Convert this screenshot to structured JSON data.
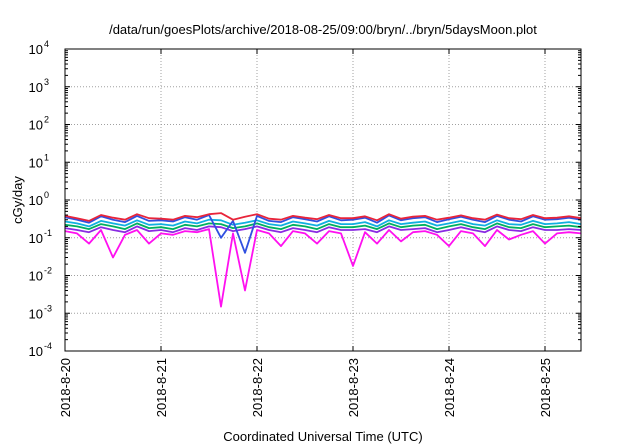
{
  "chart_data": {
    "type": "line",
    "title": "/data/run/goesPlots/archive/2018-08-25/09:00/bryn/../bryn/5daysMoon.plot",
    "xlabel": "Coordinated Universal Time (UTC)",
    "ylabel": "cGy/day",
    "y_scale": "log",
    "ylim": [
      0.0001,
      10000
    ],
    "y_ticks": [
      {
        "base": "10",
        "exp": "-4",
        "value": 0.0001
      },
      {
        "base": "10",
        "exp": "-3",
        "value": 0.001
      },
      {
        "base": "10",
        "exp": "-2",
        "value": 0.01
      },
      {
        "base": "10",
        "exp": "-1",
        "value": 0.1
      },
      {
        "base": "10",
        "exp": "0",
        "value": 1
      },
      {
        "base": "10",
        "exp": "1",
        "value": 10
      },
      {
        "base": "10",
        "exp": "2",
        "value": 100
      },
      {
        "base": "10",
        "exp": "3",
        "value": 1000
      },
      {
        "base": "10",
        "exp": "4",
        "value": 10000
      }
    ],
    "x_ticks": [
      "2018-8-20",
      "2018-8-21",
      "2018-8-22",
      "2018-8-23",
      "2018-8-24",
      "2018-8-25"
    ],
    "x_start": "2018-08-20T00:00",
    "x_end": "2018-08-25T09:00",
    "grid": true,
    "x": [
      "2018-08-20T00:00",
      "2018-08-20T03:00",
      "2018-08-20T06:00",
      "2018-08-20T09:00",
      "2018-08-20T12:00",
      "2018-08-20T15:00",
      "2018-08-20T18:00",
      "2018-08-20T21:00",
      "2018-08-21T00:00",
      "2018-08-21T03:00",
      "2018-08-21T06:00",
      "2018-08-21T09:00",
      "2018-08-21T12:00",
      "2018-08-21T15:00",
      "2018-08-21T18:00",
      "2018-08-21T21:00",
      "2018-08-22T00:00",
      "2018-08-22T03:00",
      "2018-08-22T06:00",
      "2018-08-22T09:00",
      "2018-08-22T12:00",
      "2018-08-22T15:00",
      "2018-08-22T18:00",
      "2018-08-22T21:00",
      "2018-08-23T00:00",
      "2018-08-23T03:00",
      "2018-08-23T06:00",
      "2018-08-23T09:00",
      "2018-08-23T12:00",
      "2018-08-23T15:00",
      "2018-08-23T18:00",
      "2018-08-23T21:00",
      "2018-08-24T00:00",
      "2018-08-24T03:00",
      "2018-08-24T06:00",
      "2018-08-24T09:00",
      "2018-08-24T12:00",
      "2018-08-24T15:00",
      "2018-08-24T18:00",
      "2018-08-24T21:00",
      "2018-08-25T00:00",
      "2018-08-25T03:00",
      "2018-08-25T06:00",
      "2018-08-25T09:00"
    ],
    "series": [
      {
        "color": "#e8243a",
        "values": [
          0.38,
          0.33,
          0.28,
          0.4,
          0.34,
          0.3,
          0.42,
          0.33,
          0.32,
          0.3,
          0.38,
          0.35,
          0.42,
          0.45,
          0.3,
          0.36,
          0.42,
          0.32,
          0.3,
          0.38,
          0.34,
          0.31,
          0.4,
          0.33,
          0.33,
          0.37,
          0.29,
          0.42,
          0.32,
          0.36,
          0.38,
          0.3,
          0.34,
          0.39,
          0.33,
          0.3,
          0.41,
          0.33,
          0.31,
          0.4,
          0.33,
          0.34,
          0.37,
          0.33
        ]
      },
      {
        "color": "#3050e0",
        "values": [
          0.35,
          0.3,
          0.25,
          0.37,
          0.3,
          0.26,
          0.38,
          0.28,
          0.29,
          0.27,
          0.35,
          0.3,
          0.4,
          0.1,
          0.28,
          0.04,
          0.38,
          0.28,
          0.26,
          0.35,
          0.31,
          0.27,
          0.37,
          0.29,
          0.3,
          0.34,
          0.25,
          0.39,
          0.29,
          0.33,
          0.35,
          0.26,
          0.31,
          0.36,
          0.3,
          0.26,
          0.38,
          0.3,
          0.27,
          0.37,
          0.3,
          0.31,
          0.34,
          0.3
        ]
      },
      {
        "color": "#10b0e0",
        "values": [
          0.27,
          0.24,
          0.2,
          0.28,
          0.24,
          0.21,
          0.29,
          0.22,
          0.23,
          0.21,
          0.27,
          0.24,
          0.3,
          0.29,
          0.22,
          0.25,
          0.29,
          0.23,
          0.21,
          0.27,
          0.24,
          0.21,
          0.28,
          0.23,
          0.23,
          0.26,
          0.2,
          0.29,
          0.23,
          0.25,
          0.27,
          0.21,
          0.24,
          0.28,
          0.23,
          0.21,
          0.29,
          0.23,
          0.22,
          0.28,
          0.23,
          0.24,
          0.26,
          0.23
        ]
      },
      {
        "color": "#00b060",
        "values": [
          0.22,
          0.2,
          0.17,
          0.23,
          0.2,
          0.17,
          0.24,
          0.18,
          0.19,
          0.17,
          0.22,
          0.2,
          0.24,
          0.23,
          0.18,
          0.2,
          0.24,
          0.19,
          0.17,
          0.22,
          0.2,
          0.17,
          0.23,
          0.19,
          0.19,
          0.21,
          0.17,
          0.24,
          0.19,
          0.21,
          0.22,
          0.17,
          0.2,
          0.23,
          0.19,
          0.17,
          0.24,
          0.19,
          0.18,
          0.23,
          0.19,
          0.2,
          0.21,
          0.19
        ]
      },
      {
        "color": "#8a2be2",
        "values": [
          0.18,
          0.16,
          0.14,
          0.19,
          0.16,
          0.14,
          0.2,
          0.15,
          0.16,
          0.14,
          0.18,
          0.16,
          0.2,
          0.19,
          0.15,
          0.17,
          0.2,
          0.16,
          0.14,
          0.18,
          0.16,
          0.14,
          0.19,
          0.16,
          0.16,
          0.17,
          0.14,
          0.2,
          0.16,
          0.17,
          0.18,
          0.14,
          0.16,
          0.19,
          0.16,
          0.14,
          0.2,
          0.16,
          0.15,
          0.19,
          0.16,
          0.16,
          0.17,
          0.16
        ]
      },
      {
        "color": "#ff10f0",
        "values": [
          0.15,
          0.13,
          0.07,
          0.16,
          0.03,
          0.12,
          0.16,
          0.07,
          0.13,
          0.12,
          0.15,
          0.14,
          0.17,
          0.0015,
          0.13,
          0.004,
          0.16,
          0.13,
          0.06,
          0.15,
          0.13,
          0.07,
          0.15,
          0.13,
          0.018,
          0.14,
          0.07,
          0.16,
          0.08,
          0.14,
          0.15,
          0.12,
          0.06,
          0.15,
          0.13,
          0.06,
          0.16,
          0.09,
          0.12,
          0.15,
          0.07,
          0.13,
          0.14,
          0.13
        ]
      }
    ]
  }
}
